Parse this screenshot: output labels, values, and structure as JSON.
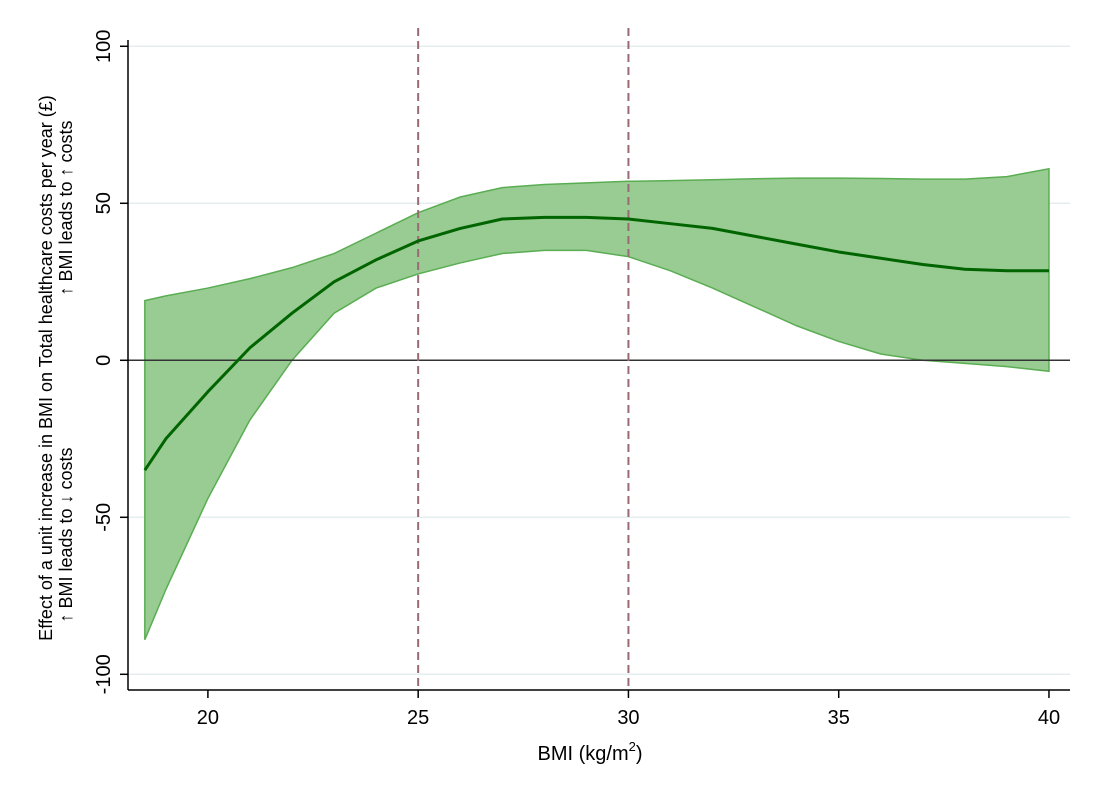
{
  "chart_data": {
    "type": "line",
    "title": "",
    "xlabel": "BMI (kg/m",
    "xlabel_sup": "2",
    "xlabel_end": ")",
    "ylabel_line1": "Effect of a unit increase in BMI on Total healthcare costs per year (£)",
    "ylabel_line2_up": "↑ BMI leads to ↑ costs",
    "ylabel_line2_down": "↑ BMI leads to ↓ costs",
    "xlim": [
      18.1,
      40.5
    ],
    "ylim": [
      -105,
      102
    ],
    "x_ticks": [
      20,
      25,
      30,
      35,
      40
    ],
    "x_tick_labels": [
      "20",
      "25",
      "30",
      "35",
      "40"
    ],
    "y_ticks": [
      -100,
      -50,
      0,
      50,
      100
    ],
    "y_tick_labels": [
      "-100",
      "-50",
      "0",
      "50",
      "100"
    ],
    "grid": true,
    "reference_lines_x": [
      25,
      30
    ],
    "reference_line_y": 0,
    "colors": {
      "line": "#006400",
      "band_fill": "#98cc92",
      "band_edge": "#5aad52",
      "vline": "#9a6a74",
      "grid": "#e4eeee",
      "zero_line": "#333333"
    },
    "series": [
      {
        "x": [
          18.5,
          19,
          20,
          21,
          22,
          23,
          24,
          25,
          26,
          27,
          28,
          29,
          30,
          31,
          32,
          33,
          34,
          35,
          36,
          37,
          38,
          39,
          40
        ],
        "y": [
          -35,
          -25,
          -10,
          4,
          15,
          25,
          32,
          38,
          42,
          45,
          45.5,
          45.5,
          45,
          43.5,
          42,
          39.5,
          37,
          34.5,
          32.5,
          30.5,
          29,
          28.5,
          28.5
        ],
        "lower": [
          -89,
          -73,
          -44,
          -19,
          0,
          15,
          23,
          27.5,
          31,
          34,
          35,
          35,
          33,
          28.5,
          23,
          17,
          11,
          6,
          2,
          0,
          -1,
          -2,
          -3.5
        ],
        "upper": [
          19,
          20.5,
          23,
          26,
          29.5,
          34,
          40.5,
          47,
          52,
          55,
          56,
          56.5,
          57,
          57.2,
          57.5,
          57.8,
          58,
          58,
          57.9,
          57.7,
          57.7,
          58.5,
          61
        ]
      }
    ]
  }
}
